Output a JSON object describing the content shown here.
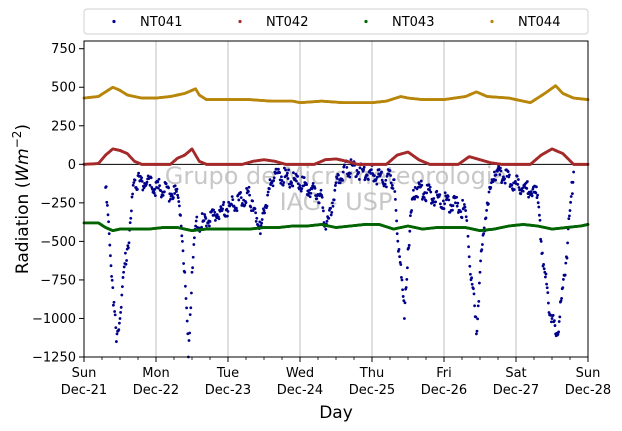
{
  "chart_data": {
    "type": "scatter",
    "xlabel": "Day",
    "ylabel": "Radiation",
    "ylabel_unit": "Wm",
    "ylabel_exp": "−2",
    "ylim": [
      -1250,
      800
    ],
    "yticks": [
      -1250,
      -1000,
      -750,
      -500,
      -250,
      0,
      250,
      500,
      750
    ],
    "ytick_labels": [
      "−1250",
      "−1000",
      "−750",
      "−500",
      "−250",
      "0",
      "250",
      "500",
      "750"
    ],
    "xlim": [
      0,
      7
    ],
    "xticks": [
      {
        "pos": 0,
        "day": "Sun",
        "date": "Dec-21"
      },
      {
        "pos": 1,
        "day": "Mon",
        "date": "Dec-22"
      },
      {
        "pos": 2,
        "day": "Tue",
        "date": "Dec-23"
      },
      {
        "pos": 3,
        "day": "Wed",
        "date": "Dec-24"
      },
      {
        "pos": 4,
        "day": "Thu",
        "date": "Dec-25"
      },
      {
        "pos": 5,
        "day": "Fri",
        "date": "Dec-26"
      },
      {
        "pos": 6,
        "day": "Sat",
        "date": "Dec-27"
      },
      {
        "pos": 7,
        "day": "Sun",
        "date": "Dec-28"
      }
    ],
    "grid": "vertical",
    "legend_placement": "top",
    "zero_line": true,
    "watermark": [
      "Grupo de Micrometeorologia",
      "IAG - USP"
    ],
    "series": [
      {
        "name": "NT041",
        "color": "#00008b",
        "x": [
          0.3,
          0.35,
          0.4,
          0.45,
          0.5,
          0.55,
          0.6,
          0.65,
          0.7,
          1.3,
          1.35,
          1.4,
          1.45,
          1.5,
          1.55,
          2.3,
          2.35,
          2.4,
          2.45,
          2.5,
          2.55,
          2.6,
          2.65,
          3.3,
          3.35,
          3.4,
          3.45,
          3.5,
          3.55,
          3.6,
          3.65,
          4.3,
          4.35,
          4.4,
          4.45,
          4.5,
          4.55,
          4.6,
          5.3,
          5.35,
          5.4,
          5.45,
          5.5,
          5.55,
          5.6,
          5.65,
          5.7,
          6.3,
          6.35,
          6.4,
          6.45,
          6.5,
          6.55,
          6.6,
          6.65,
          6.7,
          6.75,
          6.8
        ],
        "y": [
          -150,
          -450,
          -800,
          -1150,
          -1000,
          -700,
          -550,
          -350,
          -100,
          -200,
          -400,
          -700,
          -1250,
          -700,
          -400,
          -200,
          -300,
          -350,
          -450,
          -300,
          -200,
          -120,
          -50,
          -200,
          -400,
          -350,
          -250,
          -120,
          -100,
          -50,
          -20,
          -100,
          -450,
          -650,
          -1000,
          -550,
          -300,
          -150,
          -300,
          -600,
          -800,
          -1100,
          -700,
          -450,
          -250,
          -150,
          -50,
          -200,
          -500,
          -700,
          -900,
          -1000,
          -1100,
          -1020,
          -800,
          -600,
          -300,
          -50
        ]
      },
      {
        "name": "NT042",
        "color": "#a52a2a",
        "x": [
          0.0,
          0.2,
          0.3,
          0.4,
          0.5,
          0.6,
          0.7,
          0.8,
          1.2,
          1.3,
          1.4,
          1.5,
          1.55,
          1.6,
          1.7,
          2.2,
          2.35,
          2.5,
          2.65,
          2.8,
          3.2,
          3.35,
          3.5,
          3.65,
          3.8,
          4.2,
          4.35,
          4.5,
          4.65,
          4.8,
          5.2,
          5.35,
          5.5,
          5.65,
          5.8,
          6.2,
          6.35,
          6.5,
          6.65,
          6.8,
          7.0
        ],
        "y": [
          0,
          5,
          60,
          100,
          90,
          70,
          20,
          0,
          0,
          40,
          60,
          100,
          60,
          20,
          0,
          0,
          20,
          30,
          20,
          0,
          0,
          30,
          35,
          20,
          0,
          0,
          60,
          80,
          30,
          0,
          0,
          50,
          30,
          10,
          0,
          0,
          60,
          100,
          70,
          0,
          0
        ]
      },
      {
        "name": "NT043",
        "color": "#006400",
        "x": [
          0.0,
          0.2,
          0.3,
          0.4,
          0.5,
          0.7,
          0.9,
          1.1,
          1.3,
          1.5,
          1.7,
          1.9,
          2.1,
          2.3,
          2.5,
          2.7,
          2.9,
          3.1,
          3.3,
          3.5,
          3.7,
          3.9,
          4.1,
          4.3,
          4.5,
          4.7,
          4.9,
          5.1,
          5.3,
          5.5,
          5.7,
          5.9,
          6.1,
          6.3,
          6.5,
          6.7,
          6.9,
          7.0
        ],
        "y": [
          -380,
          -380,
          -410,
          -430,
          -420,
          -420,
          -420,
          -410,
          -410,
          -430,
          -420,
          -420,
          -420,
          -420,
          -410,
          -410,
          -400,
          -400,
          -390,
          -410,
          -400,
          -390,
          -390,
          -420,
          -400,
          -420,
          -410,
          -410,
          -410,
          -430,
          -420,
          -400,
          -390,
          -400,
          -420,
          -410,
          -400,
          -390
        ]
      },
      {
        "name": "NT044",
        "color": "#b8860b",
        "x": [
          0.0,
          0.2,
          0.3,
          0.4,
          0.5,
          0.6,
          0.8,
          1.0,
          1.2,
          1.4,
          1.55,
          1.6,
          1.7,
          1.9,
          2.0,
          2.3,
          2.6,
          2.9,
          3.0,
          3.3,
          3.6,
          3.9,
          4.0,
          4.2,
          4.4,
          4.5,
          4.7,
          4.9,
          5.0,
          5.3,
          5.45,
          5.6,
          5.9,
          6.0,
          6.2,
          6.4,
          6.55,
          6.65,
          6.8,
          7.0
        ],
        "y": [
          430,
          440,
          470,
          500,
          480,
          450,
          430,
          430,
          440,
          460,
          490,
          450,
          420,
          420,
          420,
          420,
          410,
          410,
          400,
          410,
          400,
          400,
          400,
          410,
          440,
          430,
          420,
          420,
          420,
          440,
          470,
          440,
          430,
          420,
          400,
          460,
          510,
          460,
          430,
          420
        ]
      }
    ]
  }
}
